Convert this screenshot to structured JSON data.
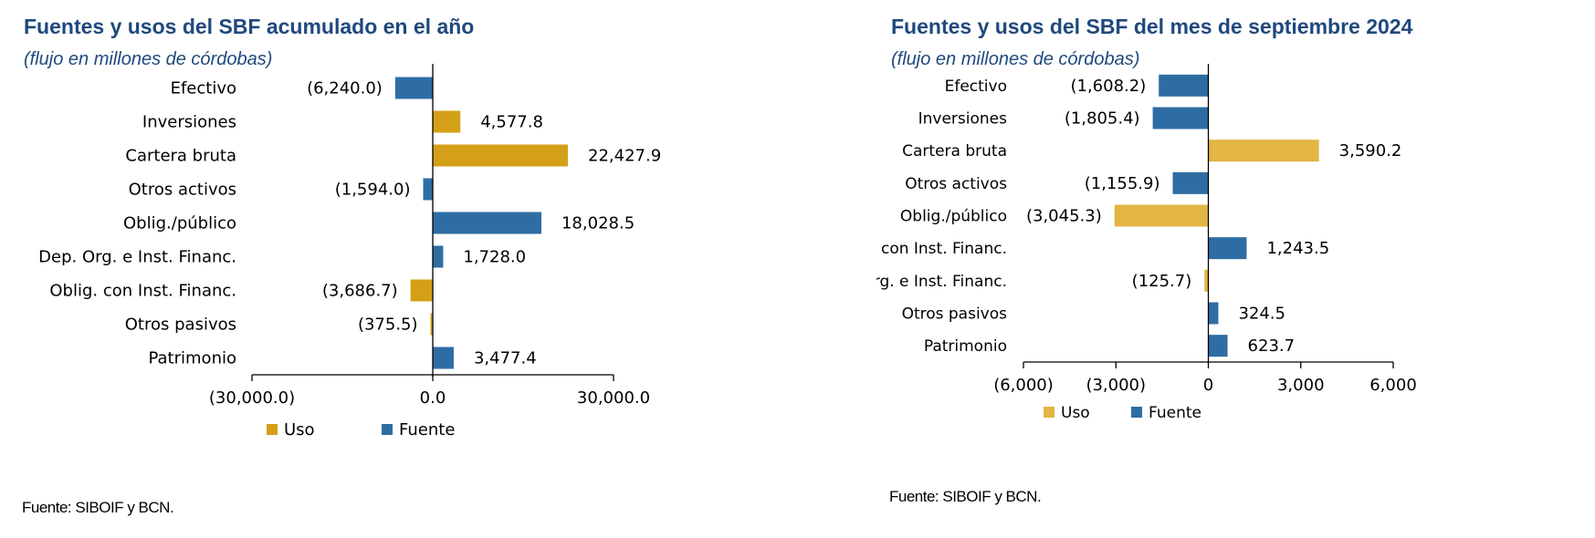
{
  "colors": {
    "uso": "#d4a017",
    "fuente": "#2e6da4",
    "uso_light": "#e2b544",
    "title": "#1f497d"
  },
  "legend": {
    "uso_label": "Uso",
    "fuente_label": "Fuente"
  },
  "left": {
    "title": "Fuentes y usos del SBF acumulado en el año",
    "subtitle": "(flujo en millones de córdobas)",
    "source": "Fuente: SIBOIF y BCN."
  },
  "right": {
    "title": "Fuentes y usos del SBF del mes de septiembre 2024",
    "subtitle": "(flujo en millones de córdobas)",
    "source": "Fuente: SIBOIF y BCN."
  },
  "chart_data": [
    {
      "type": "bar",
      "orientation": "horizontal",
      "title": "Fuentes y usos del SBF acumulado en el año",
      "subtitle": "(flujo en millones de córdobas)",
      "xlim": [
        -30000,
        30000
      ],
      "xticks": [
        -30000,
        0,
        30000
      ],
      "xtick_labels": [
        "(30,000.0)",
        "0.0",
        "30,000.0"
      ],
      "legend_position": "bottom",
      "bars": [
        {
          "category": "Efectivo",
          "value": -6240.0,
          "label": "(6,240.0)",
          "type": "fuente"
        },
        {
          "category": "Inversiones",
          "value": 4577.8,
          "label": "4,577.8",
          "type": "uso"
        },
        {
          "category": "Cartera bruta",
          "value": 22427.9,
          "label": "22,427.9",
          "type": "uso"
        },
        {
          "category": "Otros activos",
          "value": -1594.0,
          "label": "(1,594.0)",
          "type": "fuente"
        },
        {
          "category": "Oblig./público",
          "value": 18028.5,
          "label": "18,028.5",
          "type": "fuente"
        },
        {
          "category": "Dep. Org. e Inst. Financ.",
          "value": 1728.0,
          "label": "1,728.0",
          "type": "fuente"
        },
        {
          "category": "Oblig. con Inst. Financ.",
          "value": -3686.7,
          "label": "(3,686.7)",
          "type": "uso"
        },
        {
          "category": "Otros pasivos",
          "value": -375.5,
          "label": "(375.5)",
          "type": "uso"
        },
        {
          "category": "Patrimonio",
          "value": 3477.4,
          "label": "3,477.4",
          "type": "fuente"
        }
      ]
    },
    {
      "type": "bar",
      "orientation": "horizontal",
      "title": "Fuentes y usos del SBF del mes de septiembre 2024",
      "subtitle": "(flujo en millones de córdobas)",
      "xlim": [
        -6000,
        6000
      ],
      "xticks": [
        -6000,
        -3000,
        0,
        3000,
        6000
      ],
      "xtick_labels": [
        "(6,000)",
        "(3,000)",
        "0",
        "3,000",
        "6,000"
      ],
      "legend_position": "bottom",
      "bars": [
        {
          "category": "Efectivo",
          "value": -1608.2,
          "label": "(1,608.2)",
          "type": "fuente"
        },
        {
          "category": "Inversiones",
          "value": -1805.4,
          "label": "(1,805.4)",
          "type": "fuente"
        },
        {
          "category": "Cartera bruta",
          "value": 3590.2,
          "label": "3,590.2",
          "type": "uso"
        },
        {
          "category": "Otros activos",
          "value": -1155.9,
          "label": "(1,155.9)",
          "type": "fuente"
        },
        {
          "category": "Oblig./público",
          "value": -3045.3,
          "label": "(3,045.3)",
          "type": "uso"
        },
        {
          "category": "Oblig. con Inst. Financ.",
          "value": 1243.5,
          "label": "1,243.5",
          "type": "fuente"
        },
        {
          "category": "Dep. Org. e Inst. Financ.",
          "value": -125.7,
          "label": "(125.7)",
          "type": "uso"
        },
        {
          "category": "Otros pasivos",
          "value": 324.5,
          "label": "324.5",
          "type": "fuente"
        },
        {
          "category": "Patrimonio",
          "value": 623.7,
          "label": "623.7",
          "type": "fuente"
        }
      ]
    }
  ]
}
